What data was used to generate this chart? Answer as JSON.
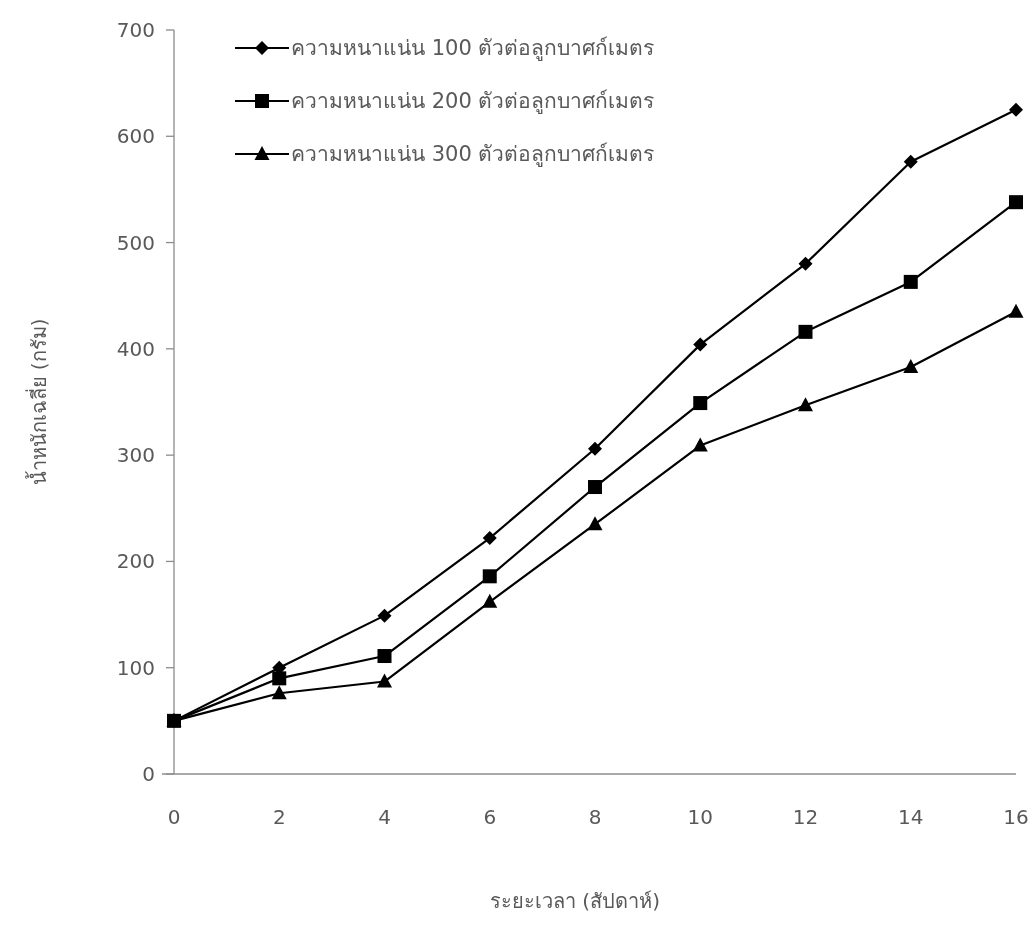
{
  "chart_data": {
    "type": "line",
    "xlabel": "ระยะเวลา (สัปดาห์)",
    "ylabel": "น้ำหนักเฉลี่ย (กรัม)",
    "x": [
      0,
      2,
      4,
      6,
      8,
      10,
      12,
      14,
      16
    ],
    "series": [
      {
        "name": "ความหนาแน่น 100 ตัวต่อลูกบาศก์เมตร",
        "color": "#000000",
        "marker": "diamond",
        "values": [
          50,
          100,
          149,
          222,
          306,
          404,
          480,
          576,
          625
        ]
      },
      {
        "name": "ความหนาแน่น 200 ตัวต่อลูกบาศก์เมตร",
        "color": "#000000",
        "marker": "square",
        "values": [
          50,
          90,
          111,
          186,
          270,
          349,
          416,
          463,
          538
        ]
      },
      {
        "name": "ความหนาแน่น 300 ตัวต่อลูกบาศก์เมตร",
        "color": "#000000",
        "marker": "triangle",
        "values": [
          50,
          76,
          87,
          162,
          235,
          309,
          347,
          383,
          435
        ]
      }
    ],
    "xlim": [
      0,
      16
    ],
    "xticks": [
      0,
      2,
      4,
      6,
      8,
      10,
      12,
      14,
      16
    ],
    "ylim": [
      0,
      700
    ],
    "yticks": [
      0,
      100,
      200,
      300,
      400,
      500,
      600,
      700
    ],
    "legend": "top left",
    "grid": false,
    "line_style": "solid"
  }
}
